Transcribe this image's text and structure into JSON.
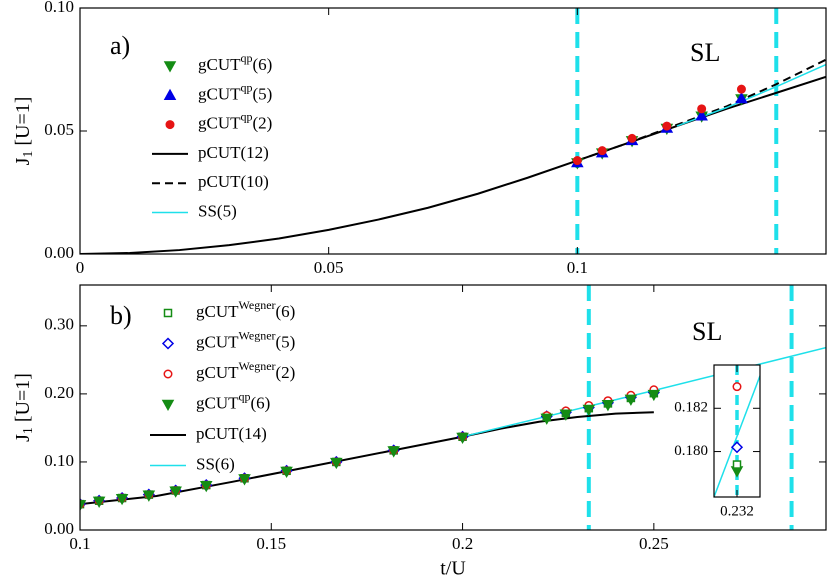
{
  "chart_data": [
    {
      "type": "line",
      "label": "a)",
      "annotation": "SL",
      "ylabel": [
        "J",
        "1",
        " [U=1]"
      ],
      "xlim": [
        0,
        0.15
      ],
      "ylim": [
        0,
        0.1
      ],
      "xticks": [
        0,
        0.05,
        0.1
      ],
      "yticks": [
        {
          "value": 0,
          "label": "0.00"
        },
        {
          "value": 0.05,
          "label": "0.05"
        },
        {
          "value": 0.1,
          "label": "0.10"
        }
      ],
      "vlines": {
        "x": [
          0.1,
          0.14
        ],
        "color": "#1ee0ea"
      },
      "series": [
        {
          "name": "gCUT",
          "name_sup": "qp",
          "name_end": "(6)",
          "color": "#148c14",
          "marker": "triangle-down",
          "fill": true,
          "x": [
            0.1,
            0.105,
            0.111,
            0.118,
            0.125,
            0.133
          ],
          "values": [
            0.037,
            0.041,
            0.046,
            0.051,
            0.056,
            0.063
          ]
        },
        {
          "name": "gCUT",
          "name_sup": "qp",
          "name_end": "(5)",
          "color": "#0000e6",
          "marker": "triangle-up",
          "fill": true,
          "x": [
            0.1,
            0.105,
            0.111,
            0.118,
            0.125,
            0.133
          ],
          "values": [
            0.0372,
            0.0412,
            0.0462,
            0.0512,
            0.0562,
            0.0632
          ]
        },
        {
          "name": "gCUT",
          "name_sup": "qp",
          "name_end": "(2)",
          "color": "#e61414",
          "marker": "circle",
          "fill": true,
          "x": [
            0.1,
            0.105,
            0.111,
            0.118,
            0.125,
            0.133
          ],
          "values": [
            0.038,
            0.042,
            0.047,
            0.052,
            0.059,
            0.067
          ]
        },
        {
          "name": "pCUT(12)",
          "color": "#000000",
          "style": "solid",
          "x": [
            0,
            0.01,
            0.02,
            0.03,
            0.04,
            0.05,
            0.06,
            0.07,
            0.08,
            0.09,
            0.1,
            0.11,
            0.12,
            0.13,
            0.14,
            0.15
          ],
          "values": [
            0,
            0.0004,
            0.0016,
            0.0036,
            0.0063,
            0.0098,
            0.014,
            0.0188,
            0.0245,
            0.031,
            0.038,
            0.045,
            0.052,
            0.059,
            0.0655,
            0.072
          ]
        },
        {
          "name": "pCUT(10)",
          "color": "#000000",
          "style": "dashed",
          "x": [
            0.1,
            0.11,
            0.12,
            0.13,
            0.14,
            0.15
          ],
          "values": [
            0.038,
            0.045,
            0.0525,
            0.06,
            0.069,
            0.079
          ]
        },
        {
          "name": "SS(5)",
          "color": "#1ee0ea",
          "style": "solid",
          "x": [
            0.12,
            0.13,
            0.14,
            0.15
          ],
          "values": [
            0.052,
            0.0595,
            0.068,
            0.077
          ]
        }
      ]
    },
    {
      "type": "line",
      "label": "b)",
      "annotation": "SL",
      "ylabel": [
        "J",
        "1",
        " [U=1]"
      ],
      "xlabel": "t/U",
      "xlim": [
        0.1,
        0.295
      ],
      "ylim": [
        0,
        0.36
      ],
      "xticks": [
        0.1,
        0.15,
        0.2,
        0.25
      ],
      "yticks": [
        {
          "value": 0,
          "label": "0.00"
        },
        {
          "value": 0.1,
          "label": "0.10"
        },
        {
          "value": 0.2,
          "label": "0.20"
        },
        {
          "value": 0.3,
          "label": "0.30"
        }
      ],
      "vlines": {
        "x": [
          0.233,
          0.286
        ],
        "color": "#1ee0ea"
      },
      "series": [
        {
          "name": "gCUT",
          "name_sup": "Wegner",
          "name_end": "(6)",
          "color": "#148c14",
          "marker": "square",
          "fill": false,
          "x": [
            0.1,
            0.105,
            0.111,
            0.118,
            0.125,
            0.133,
            0.143,
            0.154,
            0.167,
            0.182,
            0.2,
            0.222,
            0.227,
            0.233,
            0.238,
            0.244,
            0.25
          ],
          "values": [
            0.038,
            0.043,
            0.047,
            0.052,
            0.058,
            0.066,
            0.076,
            0.087,
            0.1,
            0.117,
            0.137,
            0.166,
            0.172,
            0.179,
            0.186,
            0.194,
            0.201
          ]
        },
        {
          "name": "gCUT",
          "name_sup": "Wegner",
          "name_end": "(5)",
          "color": "#0000e6",
          "marker": "diamond",
          "fill": false,
          "x": [
            0.1,
            0.105,
            0.111,
            0.118,
            0.125,
            0.133,
            0.143,
            0.154,
            0.167,
            0.182,
            0.2,
            0.222,
            0.227,
            0.233,
            0.238,
            0.244,
            0.25
          ],
          "values": [
            0.038,
            0.043,
            0.047,
            0.052,
            0.058,
            0.066,
            0.076,
            0.087,
            0.1,
            0.117,
            0.137,
            0.167,
            0.173,
            0.18,
            0.187,
            0.195,
            0.202
          ]
        },
        {
          "name": "gCUT",
          "name_sup": "Wegner",
          "name_end": "(2)",
          "color": "#e61414",
          "marker": "circle",
          "fill": false,
          "x": [
            0.1,
            0.105,
            0.111,
            0.118,
            0.125,
            0.133,
            0.143,
            0.154,
            0.167,
            0.182,
            0.2,
            0.222,
            0.227,
            0.233,
            0.238,
            0.244,
            0.25
          ],
          "values": [
            0.038,
            0.043,
            0.047,
            0.052,
            0.058,
            0.066,
            0.076,
            0.087,
            0.1,
            0.117,
            0.137,
            0.168,
            0.175,
            0.183,
            0.19,
            0.198,
            0.206
          ]
        },
        {
          "name": "gCUT",
          "name_sup": "qp",
          "name_end": "(6)",
          "color": "#148c14",
          "marker": "triangle-down",
          "fill": true,
          "x": [
            0.1,
            0.105,
            0.111,
            0.118,
            0.125,
            0.133,
            0.143,
            0.154,
            0.167,
            0.182,
            0.2,
            0.222,
            0.227,
            0.233,
            0.238,
            0.244,
            0.25
          ],
          "values": [
            0.037,
            0.042,
            0.046,
            0.051,
            0.057,
            0.065,
            0.075,
            0.086,
            0.099,
            0.116,
            0.136,
            0.164,
            0.17,
            0.177,
            0.184,
            0.192,
            0.199
          ]
        },
        {
          "name": "pCUT(14)",
          "color": "#000000",
          "style": "solid",
          "x": [
            0.1,
            0.12,
            0.14,
            0.16,
            0.18,
            0.2,
            0.21,
            0.22,
            0.23,
            0.24,
            0.25
          ],
          "values": [
            0.038,
            0.05,
            0.071,
            0.093,
            0.115,
            0.137,
            0.149,
            0.159,
            0.166,
            0.171,
            0.173
          ]
        },
        {
          "name": "SS(6)",
          "color": "#1ee0ea",
          "style": "solid",
          "x": [
            0.2,
            0.25,
            0.295
          ],
          "values": [
            0.137,
            0.205,
            0.268
          ]
        }
      ]
    },
    {
      "type": "line",
      "xlim": [
        0.2317,
        0.2323
      ],
      "ylim": [
        0.1779,
        0.184
      ],
      "xticks": [
        0.232
      ],
      "yticks": [
        {
          "value": 0.18,
          "label": "0.180"
        },
        {
          "value": 0.182,
          "label": "0.182"
        }
      ],
      "vlines": {
        "x": [
          0.232
        ],
        "color": "#1ee0ea"
      },
      "series": [
        {
          "color": "#1ee0ea",
          "style": "solid",
          "x": [
            0.2317,
            0.2323
          ],
          "values": [
            0.1779,
            0.1835
          ]
        },
        {
          "color": "#148c14",
          "marker": "triangle-down",
          "fill": true,
          "x": [
            0.232
          ],
          "values": [
            0.1791
          ]
        },
        {
          "color": "#148c14",
          "marker": "square",
          "fill": false,
          "x": [
            0.232
          ],
          "values": [
            0.1794
          ]
        },
        {
          "color": "#0000e6",
          "marker": "diamond",
          "fill": false,
          "x": [
            0.232
          ],
          "values": [
            0.1802
          ]
        },
        {
          "color": "#e61414",
          "marker": "circle",
          "fill": false,
          "x": [
            0.232
          ],
          "values": [
            0.183
          ]
        }
      ]
    }
  ]
}
